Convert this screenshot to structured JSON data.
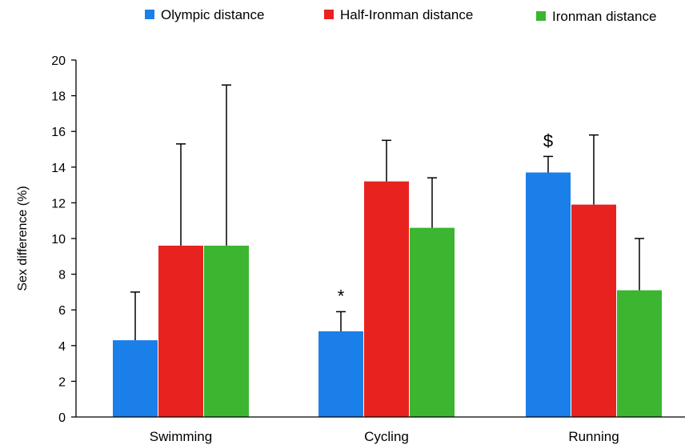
{
  "chart_data": {
    "type": "bar",
    "title": "",
    "xlabel": "",
    "ylabel": "Sex difference (%)",
    "ylim": [
      0,
      20
    ],
    "yticks": [
      0,
      2,
      4,
      6,
      8,
      10,
      12,
      14,
      16,
      18,
      20
    ],
    "grid": false,
    "legend_position": "top",
    "categories": [
      "Swimming",
      "Cycling",
      "Running"
    ],
    "series": [
      {
        "name": "Olympic distance",
        "color": "#1a7fe8",
        "values": [
          4.3,
          4.8,
          13.7
        ],
        "errors": [
          2.7,
          1.1,
          0.9
        ]
      },
      {
        "name": "Half-Ironman distance",
        "color": "#e8231f",
        "values": [
          9.6,
          13.2,
          11.9
        ],
        "errors": [
          5.7,
          2.3,
          3.9
        ]
      },
      {
        "name": "Ironman distance",
        "color": "#3cb531",
        "values": [
          9.6,
          10.6,
          7.1
        ],
        "errors": [
          9.0,
          2.8,
          2.9
        ]
      }
    ],
    "annotations": [
      {
        "text": "*",
        "category": "Cycling",
        "series": "Olympic distance"
      },
      {
        "text": "$",
        "category": "Running",
        "series": "Olympic distance"
      }
    ]
  }
}
